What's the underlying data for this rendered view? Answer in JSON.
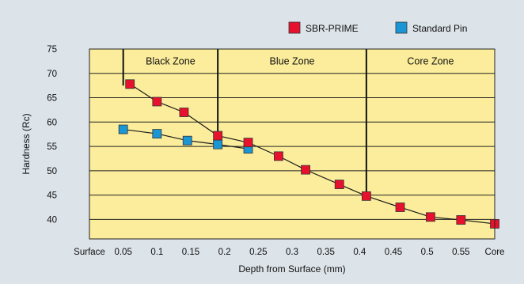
{
  "chart_data": {
    "type": "line",
    "title": "",
    "xlabel": "Depth from Surface (mm)",
    "ylabel": "Hardness (Rc)",
    "x_tick_labels": [
      "Surface",
      "0.05",
      "0.1",
      "0.15",
      "0.2",
      "0.25",
      "0.3",
      "0.35",
      "0.4",
      "0.45",
      "0.5",
      "0.55",
      "Core"
    ],
    "y_ticks": [
      40,
      45,
      50,
      55,
      60,
      65,
      70,
      75
    ],
    "ylim": [
      36,
      75
    ],
    "grid": "horizontal",
    "legend_position": "top-right",
    "zones": [
      {
        "label": "Black Zone",
        "from": 0.05,
        "to": 0.19
      },
      {
        "label": "Blue Zone",
        "from": 0.19,
        "to": 0.41
      },
      {
        "label": "Core Zone",
        "from": 0.41,
        "to": 0.6
      }
    ],
    "series": [
      {
        "name": "SBR-PRIME",
        "color": "#e8112d",
        "x": [
          0.06,
          0.1,
          0.14,
          0.19,
          0.235,
          0.28,
          0.32,
          0.37,
          0.41,
          0.46,
          0.505,
          0.55,
          0.6
        ],
        "y": [
          67.8,
          64.2,
          62.0,
          57.2,
          55.8,
          53.0,
          50.2,
          47.2,
          44.8,
          42.5,
          40.5,
          39.9,
          39.1
        ]
      },
      {
        "name": "Standard Pin",
        "color": "#1b96d4",
        "x": [
          0.05,
          0.1,
          0.145,
          0.19,
          0.235
        ],
        "y": [
          58.5,
          57.6,
          56.2,
          55.4,
          54.5
        ]
      }
    ]
  }
}
